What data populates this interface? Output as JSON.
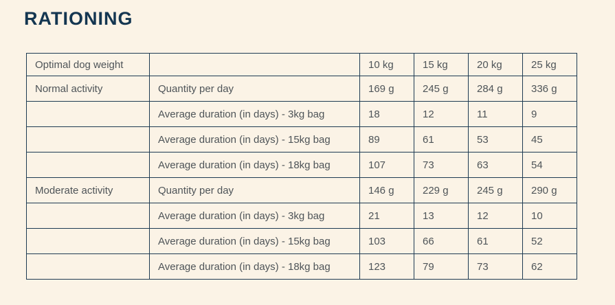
{
  "page": {
    "title": "RATIONING",
    "background_color": "#fbf3e6",
    "title_color": "#143651",
    "border_color": "#1d3a52",
    "text_color": "#4e5458"
  },
  "chart_data": {
    "type": "table",
    "title": "RATIONING",
    "columns": [
      "",
      "",
      "10 kg",
      "15 kg",
      "20 kg",
      "25 kg"
    ],
    "rows": [
      {
        "cells": [
          "Optimal dog weight",
          "",
          "10 kg",
          "15 kg",
          "20 kg",
          "25 kg"
        ]
      },
      {
        "cells": [
          "Normal activity",
          "Quantity per day",
          "169 g",
          "245 g",
          "284 g",
          "336 g"
        ]
      },
      {
        "cells": [
          "",
          "Average duration (in days) - 3kg bag",
          "18",
          "12",
          "11",
          "9"
        ]
      },
      {
        "cells": [
          "",
          "Average duration (in days) - 15kg bag",
          "89",
          "61",
          "53",
          "45"
        ]
      },
      {
        "cells": [
          "",
          "Average duration (in days) - 18kg bag",
          "107",
          "73",
          "63",
          "54"
        ]
      },
      {
        "cells": [
          "Moderate activity",
          "Quantity per day",
          "146 g",
          "229 g",
          "245 g",
          "290 g"
        ]
      },
      {
        "cells": [
          "",
          "Average duration (in days) - 3kg bag",
          "21",
          "13",
          "12",
          "10"
        ]
      },
      {
        "cells": [
          "",
          "Average duration (in days) - 15kg bag",
          "103",
          "66",
          "61",
          "52"
        ]
      },
      {
        "cells": [
          "",
          "Average duration (in days) - 18kg bag",
          "123",
          "79",
          "73",
          "62"
        ]
      }
    ]
  }
}
